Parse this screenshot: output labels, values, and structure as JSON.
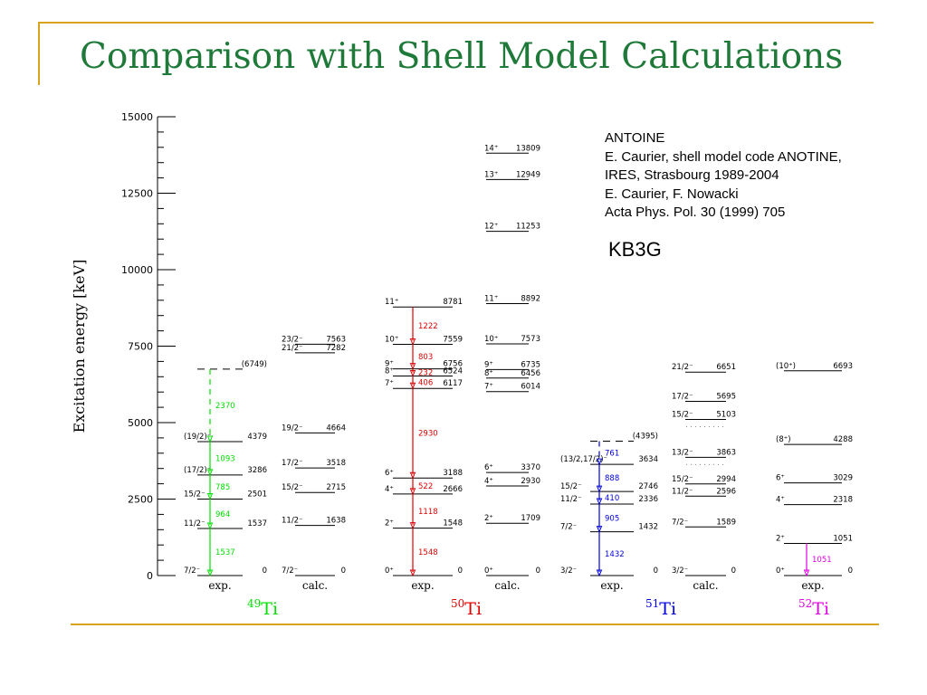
{
  "slide": {
    "title": "Comparison with Shell Model Calculations"
  },
  "reference": {
    "lines": [
      "ANTOINE",
      "E. Caurier, shell model code ANOTINE,",
      "IRES, Strasbourg 1989-2004",
      "E. Caurier, F. Nowacki",
      "Acta Phys. Pol. 30 (1999) 705"
    ],
    "model": "KB3G"
  },
  "chart_data": {
    "type": "level-scheme",
    "ylabel": "Excitation energy [keV]",
    "ylim": [
      0,
      15000
    ],
    "yticks": [
      0,
      2500,
      5000,
      7500,
      10000,
      12500,
      15000
    ],
    "nuclei": [
      {
        "mass": "49",
        "symbol": "Ti",
        "color": "#00e000"
      },
      {
        "mass": "50",
        "symbol": "Ti",
        "color": "#e00000"
      },
      {
        "mass": "51",
        "symbol": "Ti",
        "color": "#0000e0"
      },
      {
        "mass": "52",
        "symbol": "Ti",
        "color": "#e000e0"
      }
    ],
    "columns": [
      {
        "label": "exp.",
        "nucleus": 0,
        "levels": [
          {
            "spin": "7/2⁻",
            "energy": 0,
            "label": "0"
          },
          {
            "spin": "11/2⁻",
            "energy": 1537,
            "label": "1537"
          },
          {
            "spin": "15/2⁻",
            "energy": 2501,
            "label": "2501"
          },
          {
            "spin": "(17/2)⁻",
            "energy": 3286,
            "label": "3286"
          },
          {
            "spin": "(19/2)⁻",
            "energy": 4379,
            "label": "4379"
          },
          {
            "spin": "",
            "energy": 6749,
            "label": "(6749)",
            "dashed": true
          }
        ],
        "transitions": [
          {
            "from": 1537,
            "to": 0,
            "label": "1537"
          },
          {
            "from": 2501,
            "to": 1537,
            "label": "964"
          },
          {
            "from": 3286,
            "to": 2501,
            "label": "785"
          },
          {
            "from": 4379,
            "to": 3286,
            "label": "1093"
          },
          {
            "from": 6749,
            "to": 4379,
            "label": "2370",
            "dashed": true
          }
        ]
      },
      {
        "label": "calc.",
        "nucleus": 0,
        "levels": [
          {
            "spin": "7/2⁻",
            "energy": 0,
            "label": "0"
          },
          {
            "spin": "11/2⁻",
            "energy": 1638,
            "label": "1638"
          },
          {
            "spin": "15/2⁻",
            "energy": 2715,
            "label": "2715"
          },
          {
            "spin": "17/2⁻",
            "energy": 3518,
            "label": "3518"
          },
          {
            "spin": "19/2⁻",
            "energy": 4664,
            "label": "4664"
          },
          {
            "spin": "21/2⁻",
            "energy": 7282,
            "label": "7282"
          },
          {
            "spin": "23/2⁻",
            "energy": 7563,
            "label": "7563"
          }
        ]
      },
      {
        "label": "exp.",
        "nucleus": 1,
        "levels": [
          {
            "spin": "0⁺",
            "energy": 0,
            "label": "0"
          },
          {
            "spin": "2⁺",
            "energy": 1548,
            "label": "1548"
          },
          {
            "spin": "4⁺",
            "energy": 2666,
            "label": "2666"
          },
          {
            "spin": "6⁺",
            "energy": 3188,
            "label": "3188"
          },
          {
            "spin": "7⁺",
            "energy": 6117,
            "label": "6117"
          },
          {
            "spin": "8⁺",
            "energy": 6524,
            "label": "6524"
          },
          {
            "spin": "9⁺",
            "energy": 6756,
            "label": "6756"
          },
          {
            "spin": "10⁺",
            "energy": 7559,
            "label": "7559"
          },
          {
            "spin": "11⁺",
            "energy": 8781,
            "label": "8781"
          }
        ],
        "transitions": [
          {
            "from": 1548,
            "to": 0,
            "label": "1548"
          },
          {
            "from": 2666,
            "to": 1548,
            "label": "1118"
          },
          {
            "from": 3188,
            "to": 2666,
            "label": "522"
          },
          {
            "from": 6117,
            "to": 3188,
            "label": "2930"
          },
          {
            "from": 6524,
            "to": 6117,
            "label": "406"
          },
          {
            "from": 6756,
            "to": 6524,
            "label": "232"
          },
          {
            "from": 7559,
            "to": 6756,
            "label": "803"
          },
          {
            "from": 8781,
            "to": 7559,
            "label": "1222"
          }
        ]
      },
      {
        "label": "calc.",
        "nucleus": 1,
        "levels": [
          {
            "spin": "0⁺",
            "energy": 0,
            "label": "0"
          },
          {
            "spin": "2⁺",
            "energy": 1709,
            "label": "1709"
          },
          {
            "spin": "4⁺",
            "energy": 2930,
            "label": "2930"
          },
          {
            "spin": "6⁺",
            "energy": 3370,
            "label": "3370"
          },
          {
            "spin": "7⁺",
            "energy": 6014,
            "label": "6014"
          },
          {
            "spin": "8⁺",
            "energy": 6456,
            "label": "6456"
          },
          {
            "spin": "9⁺",
            "energy": 6735,
            "label": "6735"
          },
          {
            "spin": "10⁺",
            "energy": 7573,
            "label": "7573"
          },
          {
            "spin": "11⁺",
            "energy": 8892,
            "label": "8892"
          },
          {
            "spin": "12⁺",
            "energy": 11253,
            "label": "11253"
          },
          {
            "spin": "13⁺",
            "energy": 12949,
            "label": "12949"
          },
          {
            "spin": "14⁺",
            "energy": 13809,
            "label": "13809"
          }
        ]
      },
      {
        "label": "exp.",
        "nucleus": 2,
        "levels": [
          {
            "spin": "3/2⁻",
            "energy": 0,
            "label": "0"
          },
          {
            "spin": "7/2⁻",
            "energy": 1432,
            "label": "1432"
          },
          {
            "spin": "11/2⁻",
            "energy": 2336,
            "label": "2336"
          },
          {
            "spin": "15/2⁻",
            "energy": 2746,
            "label": "2746"
          },
          {
            "spin": "(13/2,17/2)⁻",
            "energy": 3634,
            "label": "3634"
          },
          {
            "spin": "",
            "energy": 4395,
            "label": "(4395)",
            "dashed": true
          }
        ],
        "transitions": [
          {
            "from": 1432,
            "to": 0,
            "label": "1432"
          },
          {
            "from": 2336,
            "to": 1432,
            "label": "905"
          },
          {
            "from": 2746,
            "to": 2336,
            "label": "410"
          },
          {
            "from": 3634,
            "to": 2746,
            "label": "888"
          },
          {
            "from": 4395,
            "to": 3634,
            "label": "761",
            "dashed": true
          }
        ]
      },
      {
        "label": "calc.",
        "nucleus": 2,
        "levels": [
          {
            "spin": "3/2⁻",
            "energy": 0,
            "label": "0"
          },
          {
            "spin": "7/2⁻",
            "energy": 1589,
            "label": "1589"
          },
          {
            "spin": "11/2⁻",
            "energy": 2596,
            "label": "2596"
          },
          {
            "spin": "15/2⁻",
            "energy": 2994,
            "label": "2994"
          },
          {
            "spin": "13/2⁻",
            "energy": 3863,
            "label": "3863"
          },
          {
            "spin": "15/2⁻",
            "energy": 5103,
            "label": "5103"
          },
          {
            "spin": "17/2⁻",
            "energy": 5695,
            "label": "5695"
          },
          {
            "spin": "21/2⁻",
            "energy": 6651,
            "label": "6651"
          }
        ]
      },
      {
        "label": "exp.",
        "nucleus": 3,
        "levels": [
          {
            "spin": "0⁺",
            "energy": 0,
            "label": "0"
          },
          {
            "spin": "2⁺",
            "energy": 1051,
            "label": "1051"
          },
          {
            "spin": "4⁺",
            "energy": 2318,
            "label": "2318"
          },
          {
            "spin": "6⁺",
            "energy": 3029,
            "label": "3029"
          },
          {
            "spin": "(8⁺)",
            "energy": 4288,
            "label": "4288"
          },
          {
            "spin": "(10⁺)",
            "energy": 6693,
            "label": "6693"
          }
        ],
        "transitions": [
          {
            "from": 1051,
            "to": 0,
            "label": "1051"
          }
        ]
      }
    ]
  }
}
